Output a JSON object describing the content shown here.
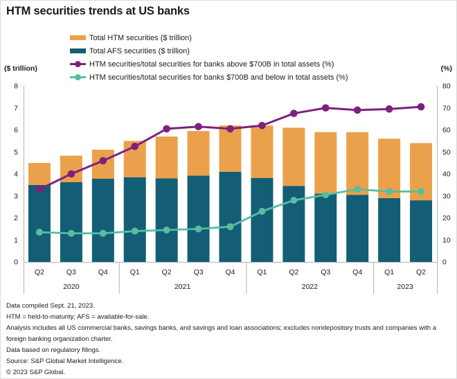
{
  "title": "HTM securities trends at US banks",
  "legend": [
    {
      "label": "Total HTM securities ($ trillion)",
      "type": "bar",
      "color": "#EBA14B"
    },
    {
      "label": "Total AFS securities ($ trillion)",
      "type": "bar",
      "color": "#135E74"
    },
    {
      "label": "HTM securities/total securities for banks above $700B in total assets (%)",
      "type": "line",
      "color": "#7D2180"
    },
    {
      "label": "HTM securities/total securities for banks $700B and below in total assets (%)",
      "type": "line",
      "color": "#57BDA2"
    }
  ],
  "chart_data": {
    "type": "combo-stacked-bar-line",
    "categories": [
      "Q2",
      "Q3",
      "Q4",
      "Q1",
      "Q2",
      "Q3",
      "Q4",
      "Q1",
      "Q2",
      "Q3",
      "Q4",
      "Q1",
      "Q2"
    ],
    "year_groups": [
      {
        "label": "2020",
        "count": 3
      },
      {
        "label": "2021",
        "count": 4
      },
      {
        "label": "2022",
        "count": 4
      },
      {
        "label": "2023",
        "count": 2
      }
    ],
    "bar_series": [
      {
        "name": "Total AFS securities ($ trillion)",
        "axis": "left",
        "color": "#135E74",
        "values": [
          3.5,
          3.63,
          3.78,
          3.85,
          3.8,
          3.92,
          4.1,
          3.82,
          3.45,
          3.1,
          3.05,
          2.9,
          2.8
        ]
      },
      {
        "name": "Total HTM securities ($ trillion)",
        "axis": "left",
        "color": "#EBA14B",
        "values": [
          1.0,
          1.2,
          1.32,
          1.65,
          1.9,
          2.03,
          2.1,
          2.38,
          2.65,
          2.8,
          2.85,
          2.7,
          2.6
        ]
      }
    ],
    "line_series": [
      {
        "name": "HTM securities/total securities for banks above $700B in total assets (%)",
        "axis": "right",
        "color": "#7D2180",
        "dot_radius": 5.3,
        "stroke_width": 3,
        "values": [
          33,
          40,
          46,
          52.5,
          60.5,
          61.5,
          60.5,
          62,
          67.5,
          70,
          69,
          69.5,
          70.5
        ]
      },
      {
        "name": "HTM securities/total securities for banks $700B and below in total assets (%)",
        "axis": "right",
        "color": "#57BDA2",
        "dot_radius": 5,
        "stroke_width": 2.8,
        "values": [
          13.5,
          13,
          13,
          14,
          14.5,
          15,
          16,
          23,
          28,
          30.5,
          33,
          32,
          32
        ]
      }
    ],
    "left_axis": {
      "label": "($ trillion)",
      "min": 0,
      "max": 8,
      "step": 1
    },
    "right_axis": {
      "label": "(%)",
      "min": 0,
      "max": 80,
      "step": 10
    },
    "grid": false,
    "legend_position": "top-left",
    "axis_line_color": "#b3b3b3",
    "text_color": "#1a1a1a"
  },
  "footnotes": [
    "Data compiled Sept. 21, 2023.",
    "HTM = held-to-maturity; AFS = available-for-sale.",
    "Analysis includes all US commercial banks, savings banks, and savings and loan associations; excludes nondepository trusts and companies with a foreign banking organization charter.",
    "Data based on regulatory filings.",
    "Source: S&P Global Market Intelligence.",
    "© 2023 S&P Global."
  ]
}
